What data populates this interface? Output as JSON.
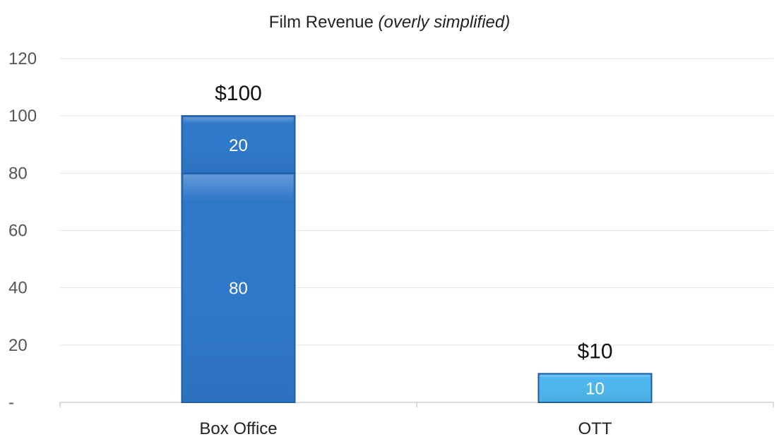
{
  "chart_data": {
    "type": "bar",
    "stacked": true,
    "title": "Film Revenue",
    "subtitle": "(overly simplified)",
    "xlabel": "",
    "ylabel": "",
    "ylim": [
      0,
      120
    ],
    "ytick_values": [
      0,
      20,
      40,
      60,
      80,
      100,
      120
    ],
    "ytick_labels": [
      "-",
      "20",
      "40",
      "60",
      "80",
      "100",
      "120"
    ],
    "grid": true,
    "legend": "none",
    "categories": [
      "Box Office",
      "OTT"
    ],
    "bars": [
      {
        "category": "Box Office",
        "total_label": "$100",
        "segments": [
          {
            "value": 80,
            "label": "80",
            "color": "#2E77C9"
          },
          {
            "value": 20,
            "label": "20",
            "color": "#2E77C9"
          }
        ]
      },
      {
        "category": "OTT",
        "total_label": "$10",
        "segments": [
          {
            "value": 10,
            "label": "10",
            "color": "#4DB6EE"
          }
        ]
      }
    ],
    "colors": {
      "grid": "#E3E3E3",
      "axis": "#D0D0D0",
      "bar_border": "#1F5C9E"
    }
  }
}
